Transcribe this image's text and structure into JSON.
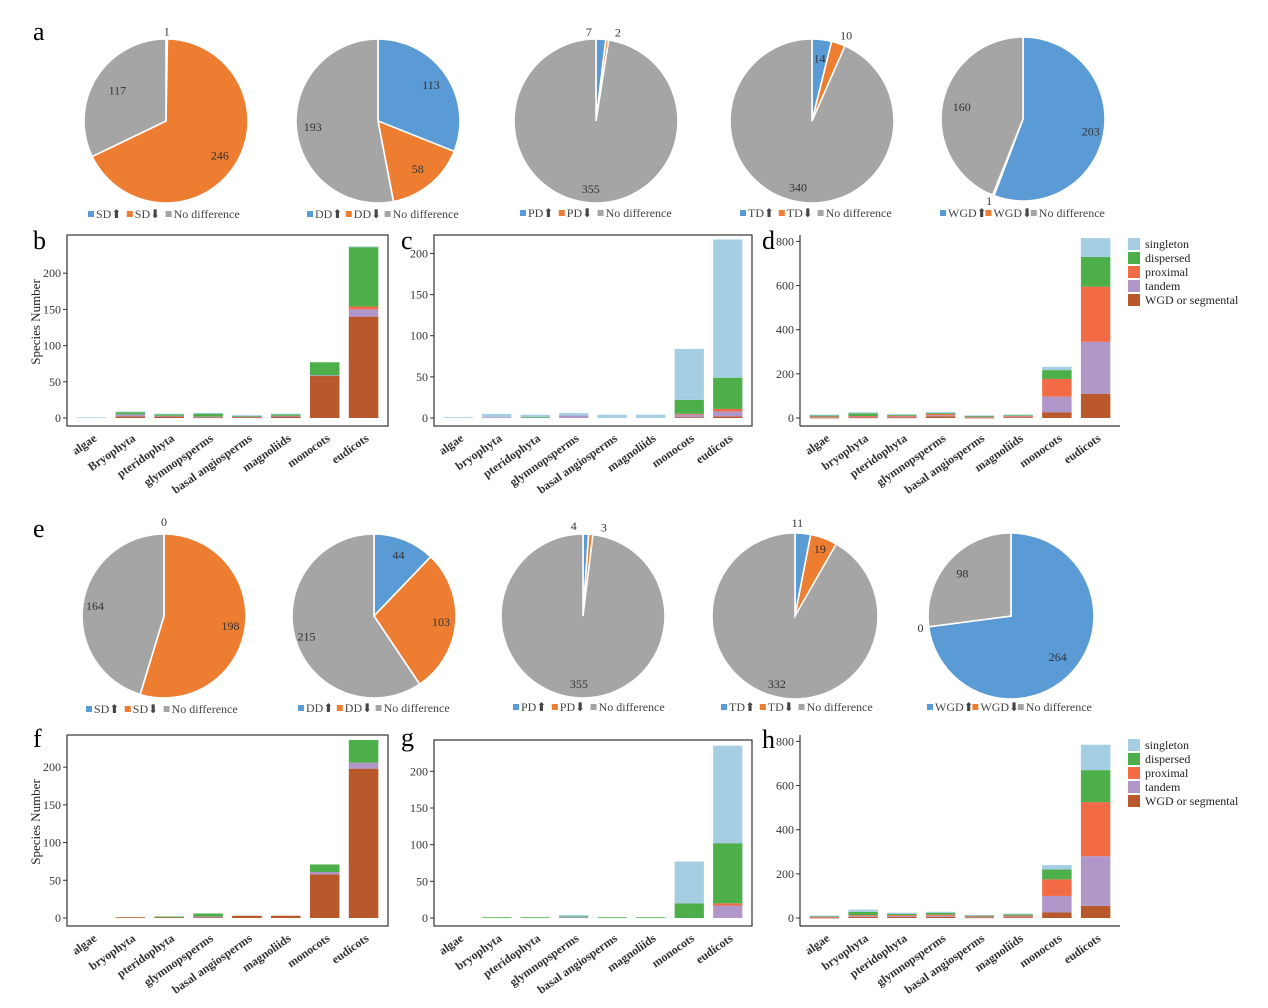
{
  "colors": {
    "blue": "#5b9bd5",
    "orange": "#ed7d31",
    "gray": "#a5a5a5",
    "singleton": "#a6cee3",
    "dispersed": "#4daf4a",
    "proximal": "#f26b45",
    "tandem": "#b197c9",
    "wgd": "#b8582b"
  },
  "stack_legend": [
    "singleton",
    "dispersed",
    "proximal",
    "tandem",
    "WGD or segmental"
  ],
  "y_axis_label": "Species Number",
  "categories_cap": [
    "algae",
    "Bryophyta",
    "pteridophyta",
    "glymnopsperms",
    "basal angiosperms",
    "magnoliids",
    "monocots",
    "eudicots"
  ],
  "categories": [
    "algae",
    "bryophyta",
    "pteridophyta",
    "glymnopsperms",
    "basal angiosperms",
    "magnoliids",
    "monocots",
    "eudicots"
  ],
  "chart_data": [
    {
      "panel": "a",
      "type": "pie",
      "legend": [
        "SD⬆",
        "SD⬇",
        "No difference"
      ],
      "values": [
        1,
        246,
        117
      ]
    },
    {
      "type": "pie",
      "legend": [
        "DD⬆",
        "DD⬇",
        "No difference"
      ],
      "values": [
        113,
        58,
        193
      ]
    },
    {
      "type": "pie",
      "legend": [
        "PD⬆",
        "PD⬇",
        "No difference"
      ],
      "values": [
        7,
        2,
        355
      ]
    },
    {
      "type": "pie",
      "legend": [
        "TD⬆",
        "TD⬇",
        "No difference"
      ],
      "values": [
        14,
        10,
        340
      ]
    },
    {
      "type": "pie",
      "legend": [
        "WGD⬆",
        "WGD⬇",
        "No difference"
      ],
      "values": [
        203,
        1,
        160
      ]
    },
    {
      "panel": "b",
      "type": "bar",
      "stacked": true,
      "ylim": [
        0,
        250
      ],
      "yticks": [
        0,
        50,
        100,
        150,
        200
      ],
      "series": [
        {
          "values": [
            1,
            1,
            1,
            1,
            1,
            1,
            0,
            1
          ]
        },
        {
          "values": [
            0,
            3,
            2,
            4,
            1,
            2,
            18,
            82
          ]
        },
        {
          "values": [
            0,
            0,
            0,
            0,
            0,
            0,
            0,
            4
          ]
        },
        {
          "values": [
            0,
            3,
            1,
            1,
            1,
            1,
            1,
            10
          ]
        },
        {
          "values": [
            0,
            2,
            2,
            1,
            1,
            2,
            58,
            140
          ]
        }
      ]
    },
    {
      "panel": "c",
      "type": "bar",
      "stacked": true,
      "ylim": [
        0,
        220
      ],
      "yticks": [
        0,
        50,
        100,
        150,
        200
      ],
      "series": [
        {
          "values": [
            1,
            4,
            3,
            3,
            4,
            4,
            62,
            168
          ]
        },
        {
          "values": [
            0,
            0,
            1,
            0,
            0,
            0,
            17,
            38
          ]
        },
        {
          "values": [
            0,
            0,
            0,
            0,
            0,
            0,
            1,
            3
          ]
        },
        {
          "values": [
            0,
            1,
            0,
            3,
            0,
            0,
            3,
            6
          ]
        },
        {
          "values": [
            0,
            0,
            0,
            0,
            0,
            0,
            1,
            2
          ]
        }
      ]
    },
    {
      "panel": "d",
      "type": "bar",
      "stacked": true,
      "ylim": [
        0,
        820
      ],
      "yticks": [
        0,
        200,
        400,
        600,
        800
      ],
      "series": [
        {
          "values": [
            2,
            5,
            4,
            5,
            3,
            3,
            15,
            85
          ]
        },
        {
          "values": [
            6,
            12,
            4,
            4,
            2,
            3,
            40,
            135
          ]
        },
        {
          "values": [
            3,
            3,
            4,
            6,
            3,
            4,
            80,
            250
          ]
        },
        {
          "values": [
            2,
            3,
            3,
            4,
            2,
            2,
            72,
            235
          ]
        },
        {
          "values": [
            2,
            3,
            3,
            8,
            2,
            4,
            25,
            110
          ]
        }
      ]
    },
    {
      "panel": "e",
      "type": "pie",
      "legend": [
        "SD⬆",
        "SD⬇",
        "No difference"
      ],
      "values": [
        0,
        198,
        164
      ]
    },
    {
      "type": "pie",
      "legend": [
        "DD⬆",
        "DD⬇",
        "No difference"
      ],
      "values": [
        44,
        103,
        215
      ]
    },
    {
      "type": "pie",
      "legend": [
        "PD⬆",
        "PD⬇",
        "No difference"
      ],
      "values": [
        4,
        3,
        355
      ]
    },
    {
      "type": "pie",
      "legend": [
        "TD⬆",
        "TD⬇",
        "No difference"
      ],
      "values": [
        11,
        19,
        332
      ]
    },
    {
      "type": "pie",
      "legend": [
        "WGD⬆",
        "WGD⬇",
        "No difference"
      ],
      "values": [
        264,
        0,
        98
      ]
    },
    {
      "panel": "f",
      "type": "bar",
      "stacked": true,
      "ylim": [
        0,
        240
      ],
      "yticks": [
        0,
        50,
        100,
        150,
        200
      ],
      "series": [
        {
          "values": [
            0,
            0,
            0,
            0,
            0,
            0,
            0,
            0
          ]
        },
        {
          "values": [
            0,
            0,
            1,
            4,
            0,
            0,
            10,
            30
          ]
        },
        {
          "values": [
            0,
            0,
            0,
            0,
            0,
            0,
            0,
            0
          ]
        },
        {
          "values": [
            0,
            0,
            0,
            1,
            0,
            0,
            3,
            8
          ]
        },
        {
          "values": [
            0,
            1,
            1,
            1,
            3,
            3,
            58,
            198
          ]
        }
      ]
    },
    {
      "panel": "g",
      "type": "bar",
      "stacked": true,
      "ylim": [
        0,
        240
      ],
      "yticks": [
        0,
        50,
        100,
        150,
        200
      ],
      "series": [
        {
          "values": [
            0,
            0,
            0,
            2,
            0,
            0,
            57,
            133
          ]
        },
        {
          "values": [
            0,
            1,
            1,
            1,
            1,
            1,
            20,
            82
          ]
        },
        {
          "values": [
            0,
            0,
            0,
            0,
            0,
            0,
            0,
            3
          ]
        },
        {
          "values": [
            0,
            0,
            0,
            1,
            0,
            0,
            0,
            17
          ]
        },
        {
          "values": [
            0,
            0,
            0,
            0,
            0,
            0,
            0,
            0
          ]
        }
      ]
    },
    {
      "panel": "h",
      "type": "bar",
      "stacked": true,
      "ylim": [
        0,
        820
      ],
      "yticks": [
        0,
        200,
        400,
        600,
        800
      ],
      "series": [
        {
          "values": [
            2,
            10,
            6,
            5,
            3,
            4,
            20,
            115
          ]
        },
        {
          "values": [
            3,
            15,
            5,
            8,
            3,
            5,
            45,
            145
          ]
        },
        {
          "values": [
            2,
            4,
            4,
            5,
            3,
            4,
            75,
            245
          ]
        },
        {
          "values": [
            2,
            4,
            4,
            5,
            2,
            3,
            75,
            225
          ]
        },
        {
          "values": [
            2,
            5,
            5,
            5,
            3,
            4,
            25,
            55
          ]
        }
      ]
    }
  ]
}
